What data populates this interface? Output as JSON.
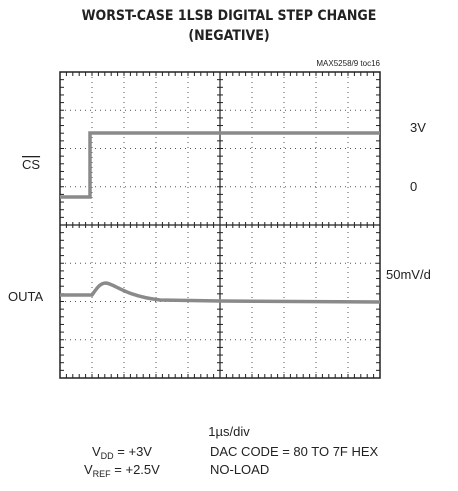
{
  "header": {
    "title_line1": "WORST-CASE 1LSB DIGITAL STEP CHANGE",
    "title_line2": "(NEGATIVE)",
    "figure_id": "MAX5258/9 toc16"
  },
  "labels": {
    "cs": "CS",
    "cs_high": "3V",
    "cs_low": "0",
    "outa": "OUTA",
    "outa_scale": "50mV/d"
  },
  "footer": {
    "timebase": "1µs/div",
    "vdd": {
      "symbol": "V",
      "sub": "DD",
      "rest": " = +3V"
    },
    "vref": {
      "symbol": "V",
      "sub": "REF",
      "rest": " = +2.5V"
    },
    "code": "DAC CODE = 80 TO 7F HEX",
    "load": "NO-LOAD"
  }
}
